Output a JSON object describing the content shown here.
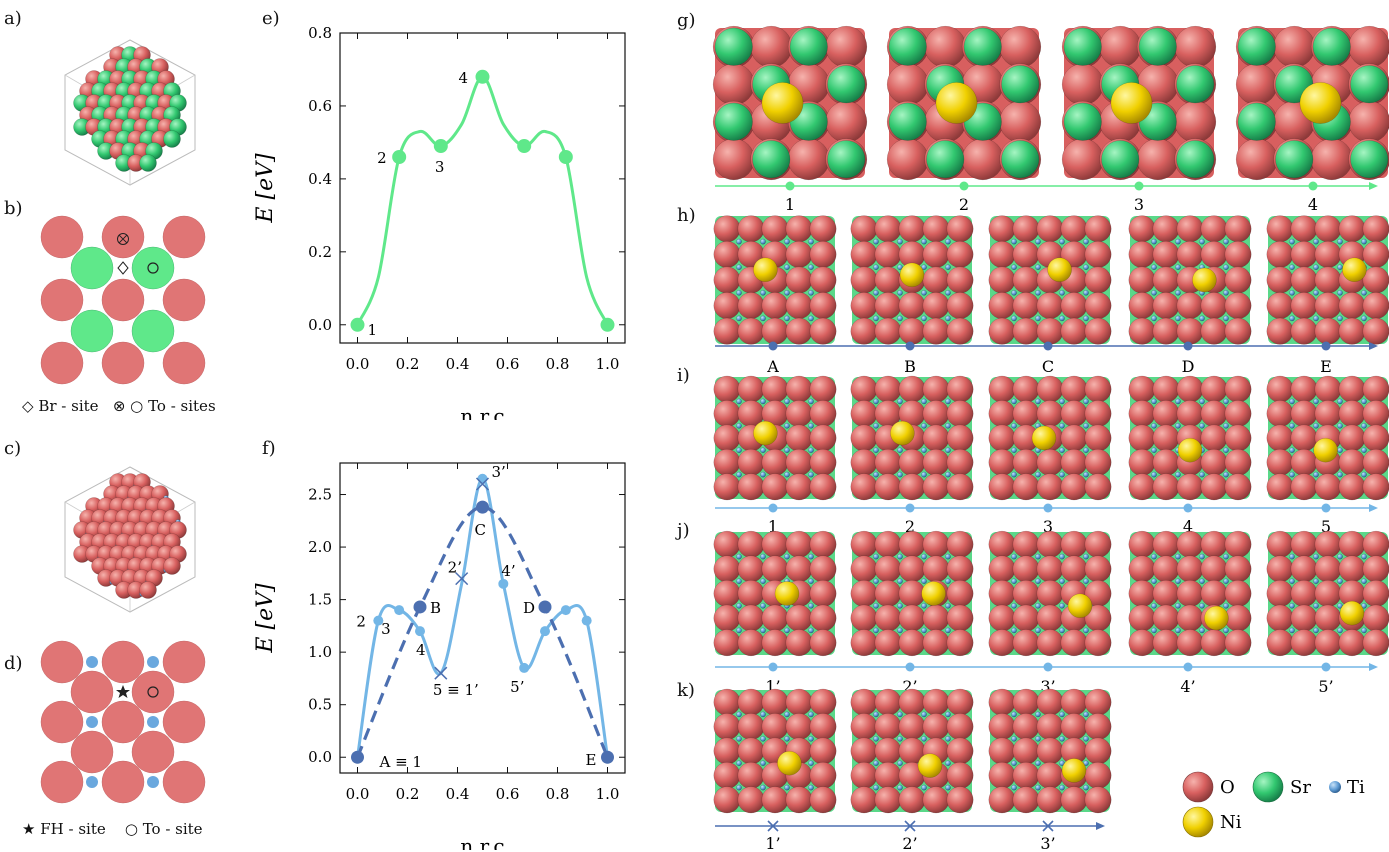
{
  "panels": {
    "a": "a)",
    "b": "b)",
    "c": "c)",
    "d": "d)",
    "e": "e)",
    "f": "f)",
    "g": "g)",
    "h": "h)",
    "i": "i)",
    "j": "j)",
    "k": "k)"
  },
  "legend_b": {
    "br_symbol": "◇",
    "br_text": "Br - site",
    "to_symbol": "⊗ ○",
    "to_text": "To - sites"
  },
  "legend_d": {
    "fh_symbol": "★",
    "fh_text": "FH - site",
    "to_symbol": "○",
    "to_text": "To - site"
  },
  "species_legend": [
    {
      "label": "O",
      "color": "#e07070"
    },
    {
      "label": "Sr",
      "color": "#4fe08a"
    },
    {
      "label": "Ti",
      "color": "#6aa8de"
    },
    {
      "label": "Ni",
      "color": "#f5d800"
    }
  ],
  "colors": {
    "green": "#5fe88a",
    "light_blue": "#73b6e6",
    "dark_blue": "#4c6fb0",
    "oxygen": "#e07070",
    "strontium": "#4fe08a",
    "titanium": "#6aa8de",
    "nickel": "#f5d800"
  },
  "chart_data": [
    {
      "panel": "e",
      "type": "line",
      "xlabel": "n.r.c",
      "ylabel": "E [eV]",
      "xlim": [
        0,
        1
      ],
      "ylim": [
        -0.05,
        0.8
      ],
      "xticks": [
        "0.0",
        "0.2",
        "0.4",
        "0.6",
        "0.8",
        "1.0"
      ],
      "yticks": [
        "0.0",
        "0.2",
        "0.4",
        "0.6",
        "0.8"
      ],
      "series": [
        {
          "color": "#5fe88a",
          "style": "solid",
          "x": [
            0,
            0.0833,
            0.1667,
            0.25,
            0.3333,
            0.4167,
            0.5,
            0.5833,
            0.6667,
            0.75,
            0.8333,
            0.9167,
            1.0
          ],
          "y": [
            0,
            0.13,
            0.46,
            0.53,
            0.49,
            0.55,
            0.68,
            0.55,
            0.49,
            0.53,
            0.46,
            0.13,
            0
          ],
          "points": [
            {
              "x": 0,
              "y": 0,
              "label": "1"
            },
            {
              "x": 0.1667,
              "y": 0.46,
              "label": "2"
            },
            {
              "x": 0.3333,
              "y": 0.49,
              "label": "3"
            },
            {
              "x": 0.5,
              "y": 0.68,
              "label": "4"
            },
            {
              "x": 0.6667,
              "y": 0.49,
              "label": ""
            },
            {
              "x": 0.8333,
              "y": 0.46,
              "label": ""
            },
            {
              "x": 1.0,
              "y": 0,
              "label": ""
            }
          ]
        }
      ]
    },
    {
      "panel": "f",
      "type": "line",
      "xlabel": "n.r.c",
      "ylabel": "E [eV]",
      "xlim": [
        0,
        1
      ],
      "ylim": [
        -0.15,
        2.8
      ],
      "xticks": [
        "0.0",
        "0.2",
        "0.4",
        "0.6",
        "0.8",
        "1.0"
      ],
      "yticks": [
        "0.0",
        "0.5",
        "1.0",
        "1.5",
        "2.0",
        "2.5"
      ],
      "series": [
        {
          "color": "#73b6e6",
          "style": "solid",
          "x": [
            0,
            0.0833,
            0.1667,
            0.25,
            0.3333,
            0.4167,
            0.5,
            0.5833,
            0.6667,
            0.75,
            0.8333,
            0.9167,
            1.0
          ],
          "y": [
            0,
            1.3,
            1.4,
            1.2,
            0.8,
            1.65,
            2.65,
            1.65,
            0.85,
            1.2,
            1.4,
            1.3,
            0
          ],
          "points": [
            {
              "x": 0.0833,
              "y": 1.3,
              "label": "2"
            },
            {
              "x": 0.1667,
              "y": 1.4,
              "label": "3"
            },
            {
              "x": 0.25,
              "y": 1.2,
              "label": "4"
            },
            {
              "x": 0.5,
              "y": 2.65,
              "label": "3’"
            },
            {
              "x": 0.5833,
              "y": 1.65,
              "label": "4’"
            },
            {
              "x": 0.6667,
              "y": 0.85,
              "label": "5’"
            },
            {
              "x": 0.75,
              "y": 1.2,
              "label": ""
            },
            {
              "x": 0.8333,
              "y": 1.4,
              "label": ""
            },
            {
              "x": 0.9167,
              "y": 1.3,
              "label": ""
            }
          ],
          "crosses": [
            {
              "x": 0.3333,
              "y": 0.8,
              "label": "5 ≡ 1’"
            },
            {
              "x": 0.4167,
              "y": 1.7,
              "label": "2’"
            },
            {
              "x": 0.5,
              "y": 2.6,
              "label": ""
            }
          ]
        },
        {
          "color": "#4c6fb0",
          "style": "dashed",
          "x": [
            0,
            0.25,
            0.5,
            0.75,
            1.0
          ],
          "y": [
            0,
            1.43,
            2.38,
            1.43,
            0
          ],
          "points": [
            {
              "x": 0,
              "y": 0,
              "label": "A ≡ 1"
            },
            {
              "x": 0.25,
              "y": 1.43,
              "label": "B"
            },
            {
              "x": 0.5,
              "y": 2.38,
              "label": "C"
            },
            {
              "x": 0.75,
              "y": 1.43,
              "label": "D"
            },
            {
              "x": 1.0,
              "y": 0,
              "label": "E"
            }
          ]
        }
      ]
    }
  ],
  "strips": [
    {
      "panel": "g",
      "kind": "sr",
      "color": "#5fe88a",
      "marker": "dot",
      "labels": [
        "1",
        "2",
        "3",
        "4"
      ]
    },
    {
      "panel": "h",
      "kind": "ti",
      "color": "#4c6fb0",
      "marker": "dot",
      "labels": [
        "A",
        "B",
        "C",
        "D",
        "E"
      ]
    },
    {
      "panel": "i",
      "kind": "ti",
      "color": "#73b6e6",
      "marker": "dot",
      "labels": [
        "1",
        "2",
        "3",
        "4",
        "5"
      ]
    },
    {
      "panel": "j",
      "kind": "ti",
      "color": "#73b6e6",
      "marker": "dot",
      "labels": [
        "1’",
        "2’",
        "3’",
        "4’",
        "5’"
      ]
    },
    {
      "panel": "k",
      "kind": "ti",
      "color": "#4c6fb0",
      "marker": "cross",
      "labels": [
        "1’",
        "2’",
        "3’"
      ]
    }
  ]
}
